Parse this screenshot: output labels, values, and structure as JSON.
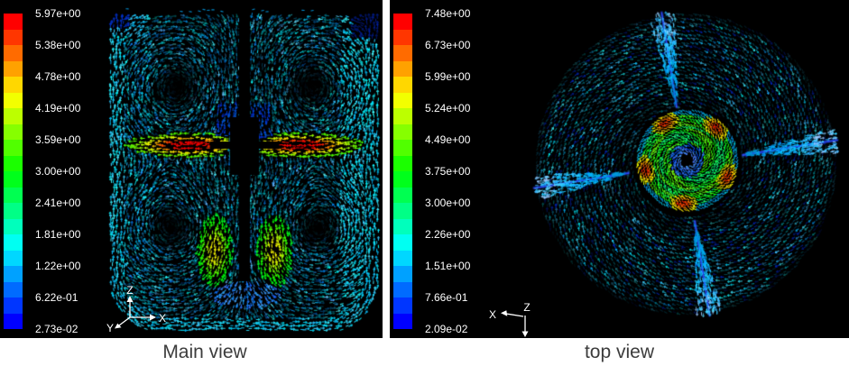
{
  "figure": {
    "background": "#ffffff",
    "panel_bg": "#000000",
    "caption_color": "#3c3c3c",
    "legend_text_color": "#ffffff",
    "baffle_line_color": "#2b4bff",
    "colorbar_stops": [
      "#ff0000",
      "#ffff00",
      "#00ff00",
      "#00ffff",
      "#0000ff"
    ],
    "colorbar_segments": 20,
    "panels": [
      {
        "caption": "Main view",
        "legend_labels": [
          "5.97e+00",
          "5.38e+00",
          "4.78e+00",
          "4.19e+00",
          "3.59e+00",
          "3.00e+00",
          "2.41e+00",
          "1.81e+00",
          "1.22e+00",
          "6.22e-01",
          "2.73e-02"
        ],
        "axes": {
          "up": "Z",
          "right": "X",
          "diagonal": "Y"
        }
      },
      {
        "caption": "top view",
        "legend_labels": [
          "7.48e+00",
          "6.73e+00",
          "5.99e+00",
          "5.24e+00",
          "4.49e+00",
          "3.75e+00",
          "3.00e+00",
          "2.26e+00",
          "1.51e+00",
          "7.66e-01",
          "2.09e-02"
        ],
        "axes": {
          "left": "X",
          "down": "Z"
        }
      }
    ]
  },
  "chart_data": [
    {
      "type": "heatmap",
      "title": "Main view",
      "plot": "velocity vector field, side view of stirred tank",
      "legend_ticks": [
        5.97,
        5.38,
        4.78,
        4.19,
        3.59,
        3.0,
        2.41,
        1.81,
        1.22,
        0.622,
        0.0273
      ],
      "value_range": [
        0.0273,
        5.97
      ],
      "colormap": "rainbow (blue=low, red=high)",
      "legend_position": "left"
    },
    {
      "type": "heatmap",
      "title": "top view",
      "plot": "velocity vector field, top view of stirred tank",
      "legend_ticks": [
        7.48,
        6.73,
        5.99,
        5.24,
        4.49,
        3.75,
        3.0,
        2.26,
        1.51,
        0.766,
        0.0209
      ],
      "value_range": [
        0.0209,
        7.48
      ],
      "colormap": "rainbow (blue=low, red=high)",
      "legend_position": "left"
    }
  ]
}
